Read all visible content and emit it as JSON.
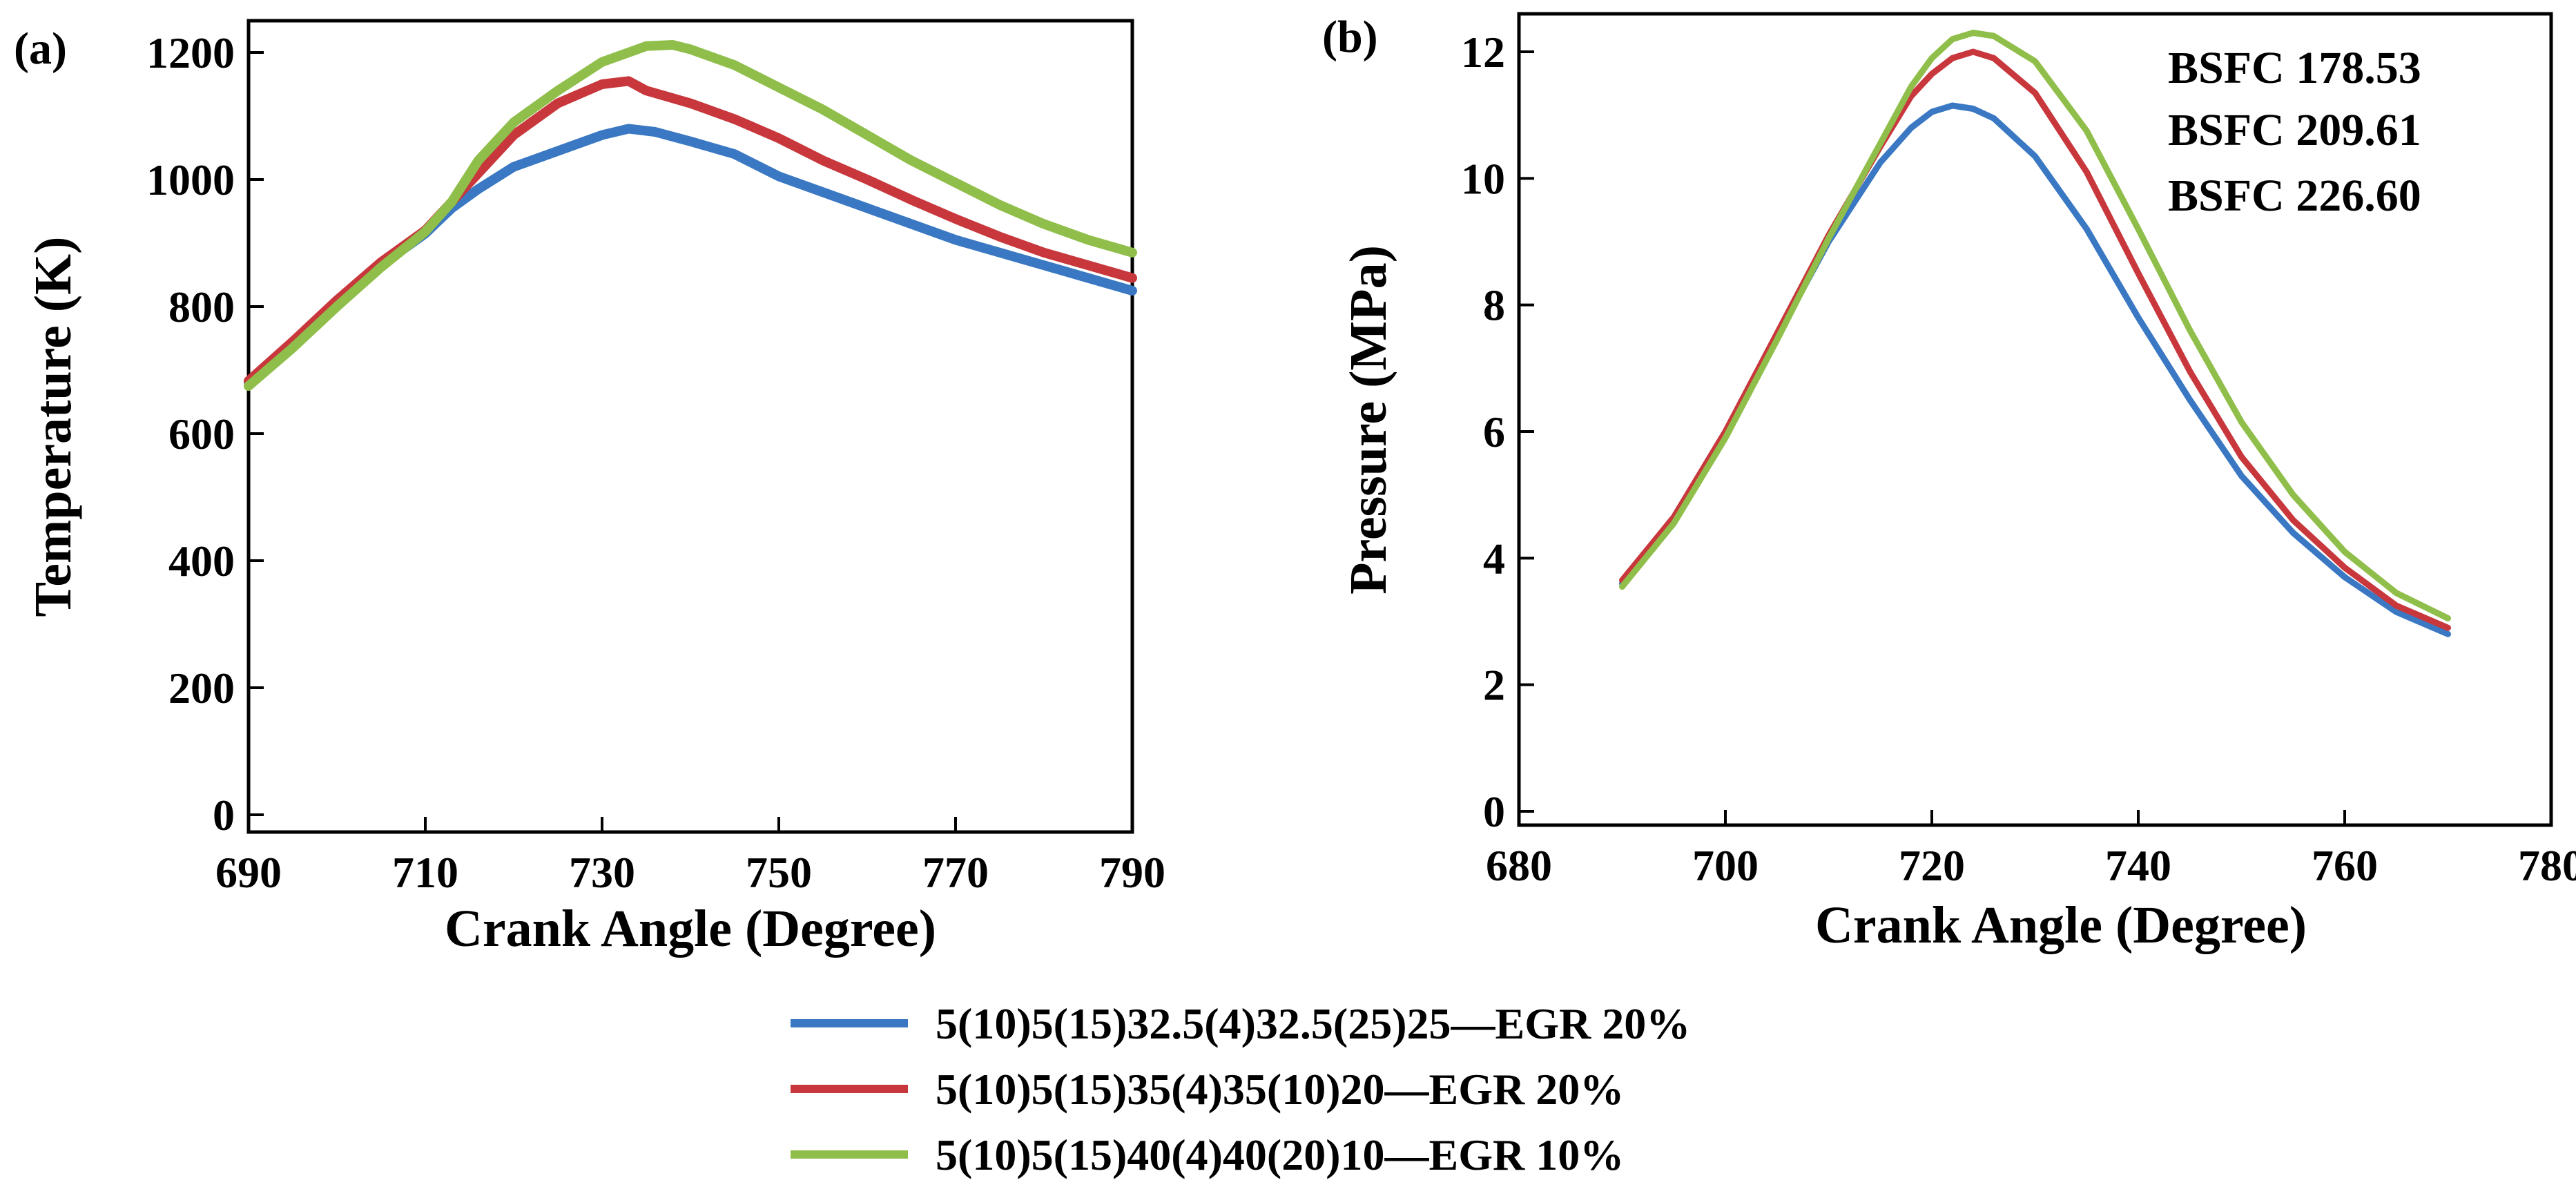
{
  "chart_data": [
    {
      "type": "line",
      "panel_label": "(a)",
      "xlabel": "Crank Angle (Degree)",
      "ylabel": "Temperature (K)",
      "xlim": [
        690,
        790
      ],
      "ylim": [
        0,
        1250
      ],
      "xticks": [
        "690",
        "710",
        "730",
        "750",
        "770",
        "790"
      ],
      "yticks": [
        "0",
        "200",
        "400",
        "600",
        "800",
        "1000",
        "1200"
      ],
      "grid": false,
      "series": [
        {
          "name": "5(10)5(15)32.5(4)32.5(25)25—EGR 20%",
          "color": "#3a78c3",
          "x": [
            690,
            695,
            700,
            705,
            710,
            713,
            716,
            720,
            725,
            730,
            733,
            736,
            740,
            745,
            750,
            755,
            760,
            765,
            770,
            775,
            780,
            785,
            790
          ],
          "y": [
            680,
            740,
            805,
            865,
            915,
            955,
            985,
            1020,
            1045,
            1070,
            1080,
            1075,
            1060,
            1040,
            1005,
            980,
            955,
            930,
            905,
            885,
            865,
            845,
            825
          ]
        },
        {
          "name": "5(10)5(15)35(4)35(10)20—EGR 20%",
          "color": "#c8373c",
          "x": [
            690,
            695,
            700,
            705,
            710,
            713,
            716,
            720,
            725,
            730,
            733,
            735,
            740,
            745,
            750,
            755,
            760,
            765,
            770,
            775,
            780,
            785,
            790
          ],
          "y": [
            683,
            745,
            810,
            870,
            920,
            965,
            1010,
            1070,
            1120,
            1150,
            1155,
            1140,
            1120,
            1095,
            1065,
            1030,
            1000,
            968,
            938,
            910,
            885,
            865,
            845
          ]
        },
        {
          "name": "5(10)5(15)40(4)40(20)10—EGR 10%",
          "color": "#8fbf4a",
          "x": [
            690,
            695,
            700,
            705,
            710,
            713,
            716,
            720,
            725,
            730,
            735,
            738,
            740,
            745,
            750,
            755,
            760,
            765,
            770,
            775,
            780,
            785,
            790
          ],
          "y": [
            675,
            735,
            800,
            862,
            918,
            965,
            1030,
            1090,
            1140,
            1185,
            1210,
            1212,
            1205,
            1180,
            1145,
            1110,
            1070,
            1030,
            995,
            960,
            930,
            905,
            885
          ]
        }
      ]
    },
    {
      "type": "line",
      "panel_label": "(b)",
      "xlabel": "Crank Angle (Degree)",
      "ylabel": "Pressure (MPa)",
      "xlim": [
        680,
        780
      ],
      "ylim": [
        0,
        12.6
      ],
      "xticks": [
        "680",
        "700",
        "720",
        "740",
        "760",
        "780"
      ],
      "yticks": [
        "0",
        "2",
        "4",
        "6",
        "8",
        "10",
        "12"
      ],
      "grid": false,
      "annotations": [
        {
          "text": "BSFC 178.53",
          "color": "#8fbf4a"
        },
        {
          "text": "BSFC 209.61",
          "color": "#c8373c"
        },
        {
          "text": "BSFC 226.60",
          "color": "#3a78c3"
        }
      ],
      "series": [
        {
          "name": "5(10)5(15)32.5(4)32.5(25)25—EGR 20%",
          "color": "#3a78c3",
          "x": [
            690,
            695,
            700,
            705,
            710,
            715,
            718,
            720,
            722,
            724,
            726,
            730,
            735,
            740,
            745,
            750,
            755,
            760,
            765,
            770
          ],
          "y": [
            3.6,
            4.6,
            5.95,
            7.5,
            9.0,
            10.25,
            10.8,
            11.05,
            11.15,
            11.1,
            10.95,
            10.35,
            9.2,
            7.8,
            6.5,
            5.3,
            4.4,
            3.7,
            3.15,
            2.8
          ]
        },
        {
          "name": "5(10)5(15)35(4)35(10)20—EGR 20%",
          "color": "#c8373c",
          "x": [
            690,
            695,
            700,
            705,
            710,
            715,
            718,
            720,
            722,
            724,
            726,
            730,
            735,
            740,
            745,
            750,
            755,
            760,
            765,
            770
          ],
          "y": [
            3.65,
            4.65,
            6.0,
            7.55,
            9.1,
            10.5,
            11.3,
            11.65,
            11.9,
            12.0,
            11.9,
            11.35,
            10.1,
            8.5,
            6.95,
            5.6,
            4.6,
            3.85,
            3.25,
            2.9
          ]
        },
        {
          "name": "5(10)5(15)40(4)40(20)10—EGR 10%",
          "color": "#8fbf4a",
          "x": [
            690,
            695,
            700,
            705,
            710,
            715,
            718,
            720,
            722,
            724,
            726,
            730,
            735,
            740,
            745,
            750,
            755,
            760,
            765,
            770
          ],
          "y": [
            3.55,
            4.55,
            5.9,
            7.45,
            9.05,
            10.55,
            11.45,
            11.9,
            12.2,
            12.3,
            12.25,
            11.85,
            10.75,
            9.2,
            7.6,
            6.15,
            5.0,
            4.1,
            3.45,
            3.05
          ]
        }
      ]
    }
  ],
  "legend": [
    {
      "label": "5(10)5(15)32.5(4)32.5(25)25—EGR 20%",
      "color": "#3a78c3"
    },
    {
      "label": "5(10)5(15)35(4)35(10)20—EGR 20%",
      "color": "#c8373c"
    },
    {
      "label": "5(10)5(15)40(4)40(20)10—EGR 10%",
      "color": "#8fbf4a"
    }
  ]
}
